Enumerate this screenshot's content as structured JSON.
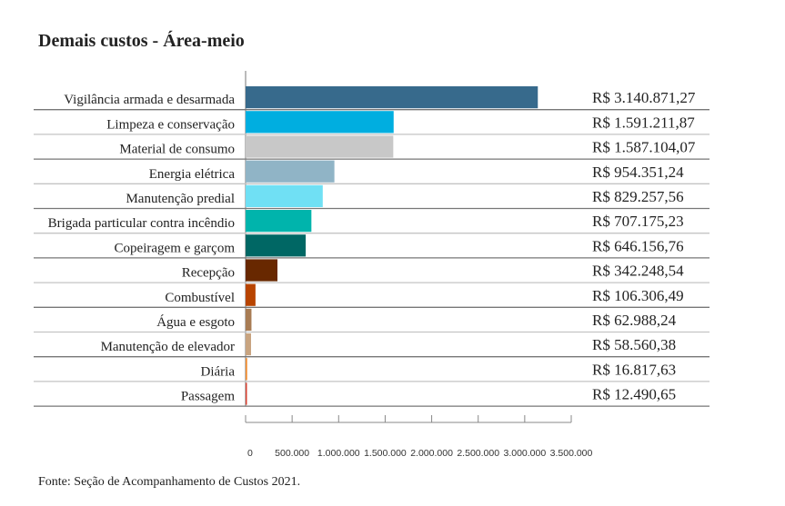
{
  "chart_data": {
    "type": "bar",
    "orientation": "horizontal",
    "title": "Demais custos - Área-meio",
    "source": "Fonte: Seção de Acompanhamento de Custos 2021.",
    "categories": [
      "Vigilância armada e desarmada",
      "Limpeza e conservação",
      "Material de consumo",
      "Energia elétrica",
      "Manutenção predial",
      "Brigada particular contra incêndio",
      "Copeiragem e garçom",
      "Recepção",
      "Combustível",
      "Água e esgoto",
      "Manutenção de elevador",
      "Diária",
      "Passagem"
    ],
    "values": [
      3140871.27,
      1591211.87,
      1587104.07,
      954351.24,
      829257.56,
      707175.23,
      646156.76,
      342248.54,
      106306.49,
      62988.24,
      58560.38,
      16817.63,
      12490.65
    ],
    "value_labels": [
      "R$ 3.140.871,27",
      "R$ 1.591.211,87",
      "R$ 1.587.104,07",
      "R$ 954.351,24",
      "R$ 829.257,56",
      "R$ 707.175,23",
      "R$ 646.156,76",
      "R$ 342.248,54",
      "R$ 106.306,49",
      "R$ 62.988,24",
      "R$ 58.560,38",
      "R$ 16.817,63",
      "R$ 12.490,65"
    ],
    "colors": [
      "#376a8c",
      "#00aee0",
      "#c8c8c8",
      "#90b4c6",
      "#70e0f4",
      "#00b4ac",
      "#006764",
      "#682800",
      "#b84400",
      "#a87c54",
      "#c8a480",
      "#f08c30",
      "#d84030"
    ],
    "xlim": [
      0,
      3500000
    ],
    "xticks": [
      0,
      500000,
      1000000,
      1500000,
      2000000,
      2500000,
      3000000,
      3500000
    ],
    "xtick_labels": [
      "0",
      "500.000",
      "1.000.000",
      "1.500.000",
      "2.000.000",
      "2.500.000",
      "3.000.000",
      "3.500.000"
    ],
    "grid": false
  }
}
